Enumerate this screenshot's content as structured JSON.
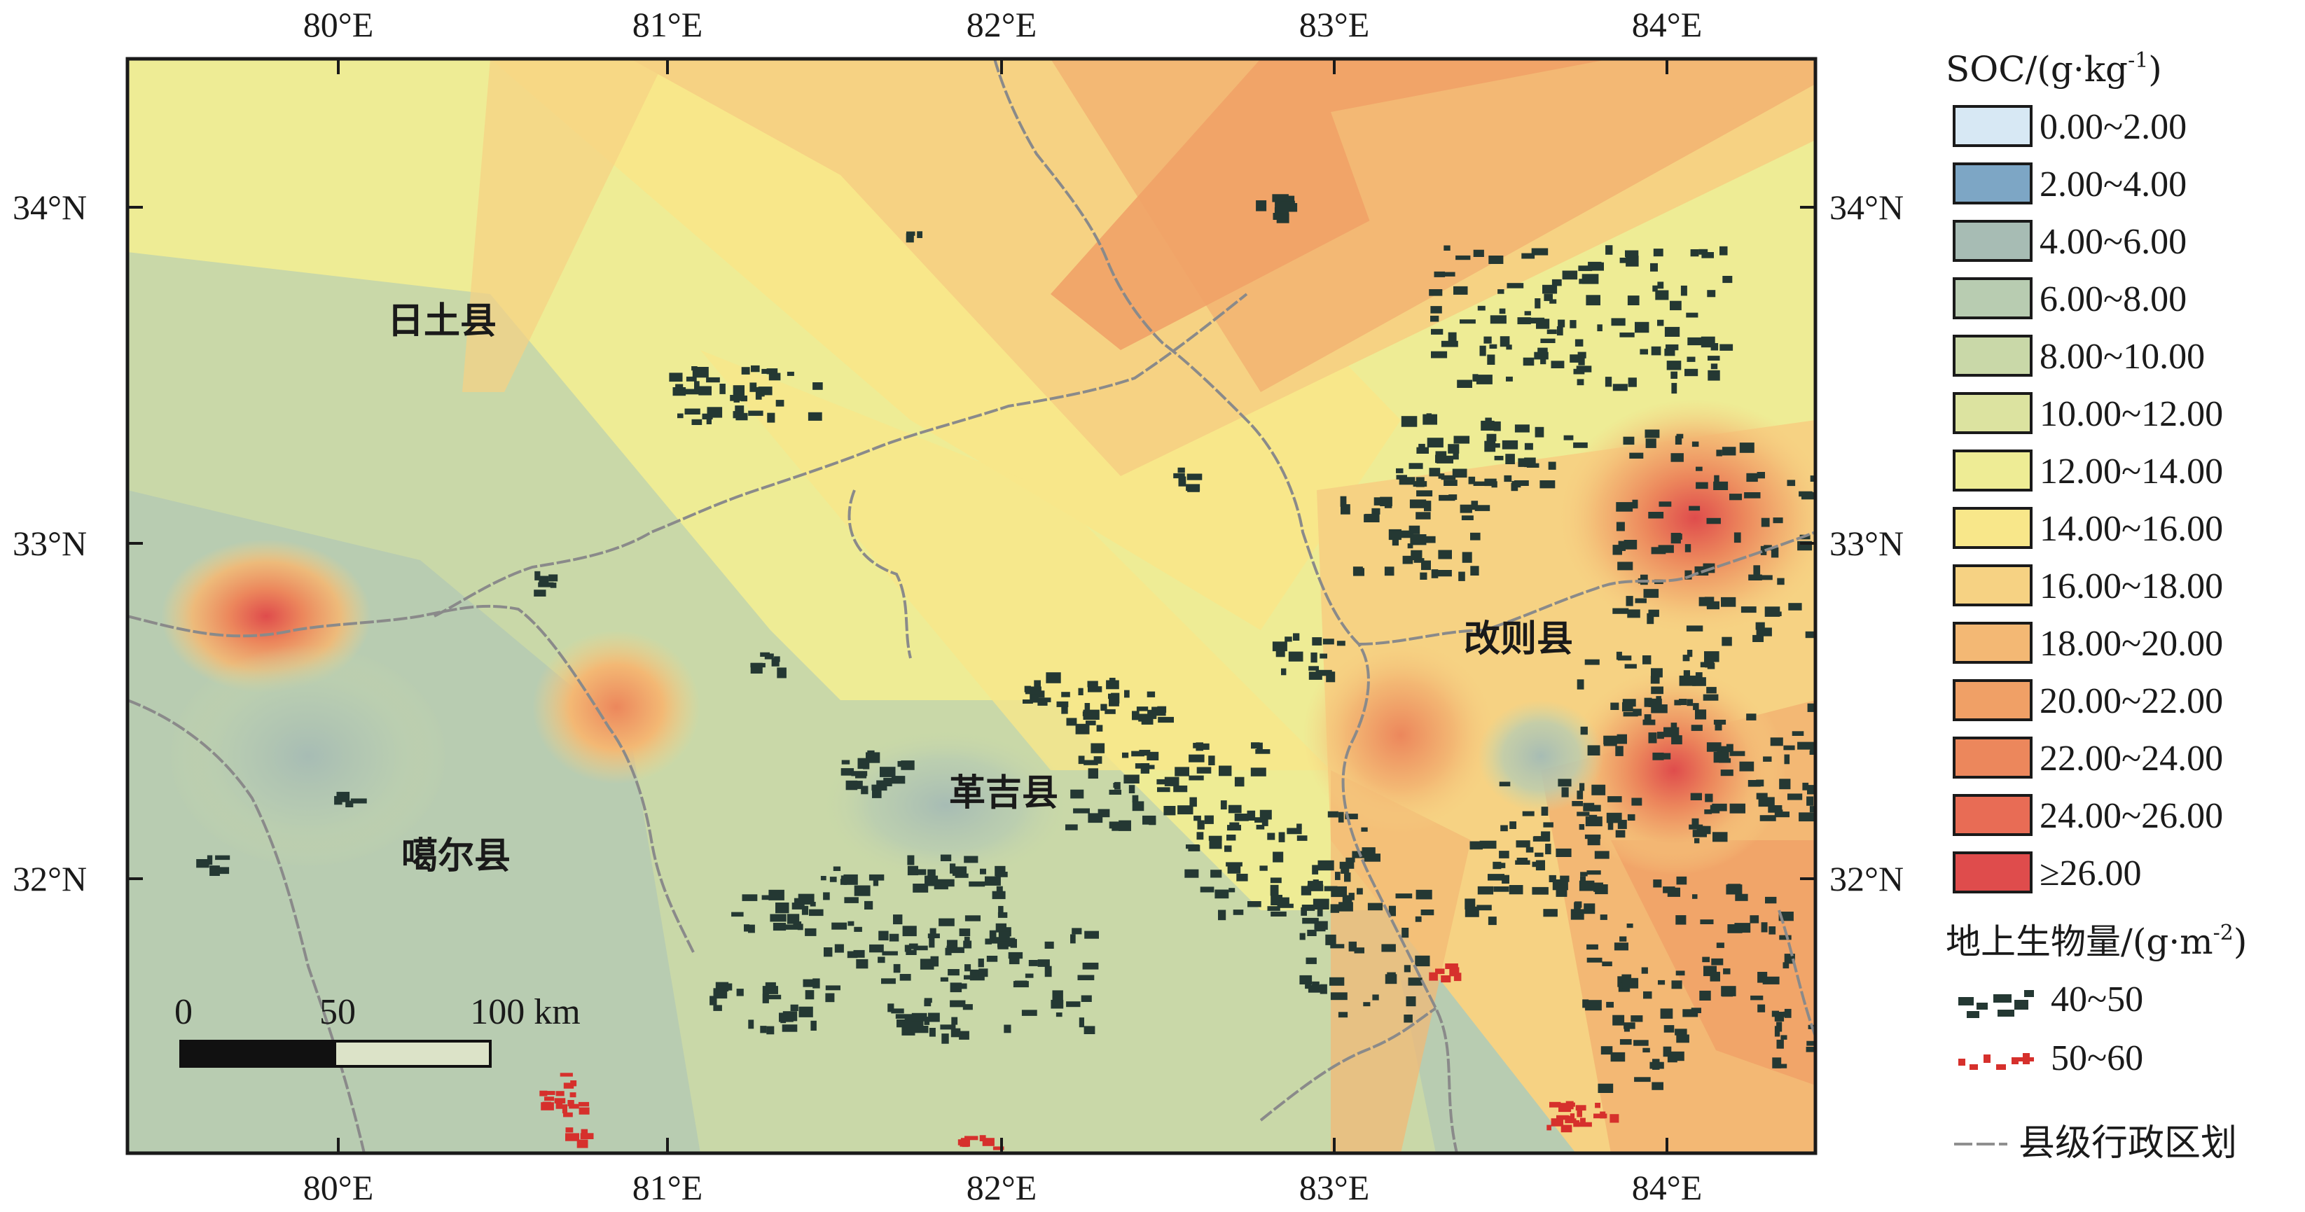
{
  "map": {
    "lon_ticks": [
      "80°E",
      "81°E",
      "82°E",
      "83°E",
      "84°E"
    ],
    "lat_ticks": [
      "34°N",
      "33°N",
      "32°N"
    ],
    "counties": [
      {
        "id": "ritu",
        "name": "日土县"
      },
      {
        "id": "gaer",
        "name": "噶尔县"
      },
      {
        "id": "geji",
        "name": "革吉县"
      },
      {
        "id": "gaize",
        "name": "改则县"
      }
    ],
    "scale_bar": {
      "labels": [
        "0",
        "50",
        "100 km"
      ]
    }
  },
  "legend": {
    "soc": {
      "title": "SOC/(g·kg",
      "title_sup": "-1",
      "title_end": ")",
      "classes": [
        {
          "label": "0.00~2.00",
          "color": "#d7e8f4"
        },
        {
          "label": "2.00~4.00",
          "color": "#7da6c5"
        },
        {
          "label": "4.00~6.00",
          "color": "#a7bcb4"
        },
        {
          "label": "6.00~8.00",
          "color": "#b8ccb1"
        },
        {
          "label": "8.00~10.00",
          "color": "#c9d8a8"
        },
        {
          "label": "10.00~12.00",
          "color": "#dce3a0"
        },
        {
          "label": "12.00~14.00",
          "color": "#eeec95"
        },
        {
          "label": "14.00~16.00",
          "color": "#f8e78a"
        },
        {
          "label": "16.00~18.00",
          "color": "#f6d283"
        },
        {
          "label": "18.00~20.00",
          "color": "#f3b874"
        },
        {
          "label": "20.00~22.00",
          "color": "#f0a066"
        },
        {
          "label": "22.00~24.00",
          "color": "#ec875c"
        },
        {
          "label": "24.00~26.00",
          "color": "#e86c55"
        },
        {
          "label": "≥26.00",
          "color": "#df4c4c"
        }
      ]
    },
    "biomass": {
      "title": "地上生物量/(g·m",
      "title_sup": "-2",
      "title_end": ")",
      "classes": [
        {
          "label": "40~50",
          "color": "#243833"
        },
        {
          "label": "50~60",
          "color": "#d6302c"
        }
      ]
    },
    "boundary": {
      "label": "县级行政区划",
      "color": "#8f8f8f"
    }
  }
}
